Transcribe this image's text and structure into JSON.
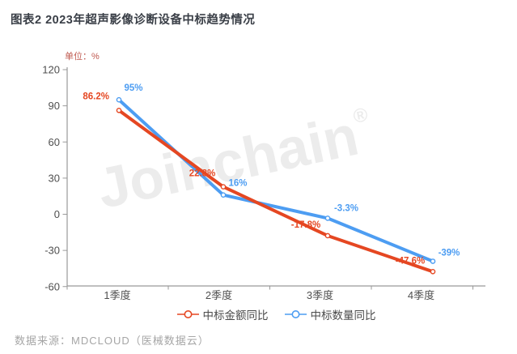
{
  "title": "图表2 2023年超声影像诊断设备中标趋势情况",
  "unit_label": "单位：%",
  "watermark_text": "Joinchain",
  "watermark_reg": "®",
  "source": "数据来源：MDCLOUD（医械数据云）",
  "colors": {
    "amount": "#e54722",
    "count": "#4d9df2",
    "title_text": "#3a3f47",
    "unit_text": "#bf584e",
    "axis": "#999999",
    "tick_text": "#4f4f4f",
    "legend_text": "#4a4a4a",
    "source_text": "#a6a6a6",
    "watermark": "#ececec"
  },
  "chart_data": {
    "type": "line",
    "title": "图表2 2023年超声影像诊断设备中标趋势情况",
    "categories": [
      "1季度",
      "2季度",
      "3季度",
      "4季度"
    ],
    "series": [
      {
        "name": "中标金额同比",
        "color_key": "amount",
        "values": [
          86.2,
          22.8,
          -17.8,
          -47.6
        ],
        "labels": [
          "86.2%",
          "22.8%",
          "-17.8%",
          "-47.6%"
        ]
      },
      {
        "name": "中标数量同比",
        "color_key": "count",
        "values": [
          95,
          16,
          -3.3,
          -39
        ],
        "labels": [
          "95%",
          "16%",
          "-3.3%",
          "-39%"
        ]
      }
    ],
    "yticks": [
      120,
      90,
      60,
      30,
      0,
      -30,
      -60
    ],
    "ylim": [
      -60,
      120
    ],
    "ylabel": "单位：%",
    "grid": false,
    "legend_position": "bottom"
  },
  "legend": {
    "items": [
      {
        "label": "中标金额同比",
        "color_key": "amount"
      },
      {
        "label": "中标数量同比",
        "color_key": "count"
      }
    ]
  }
}
